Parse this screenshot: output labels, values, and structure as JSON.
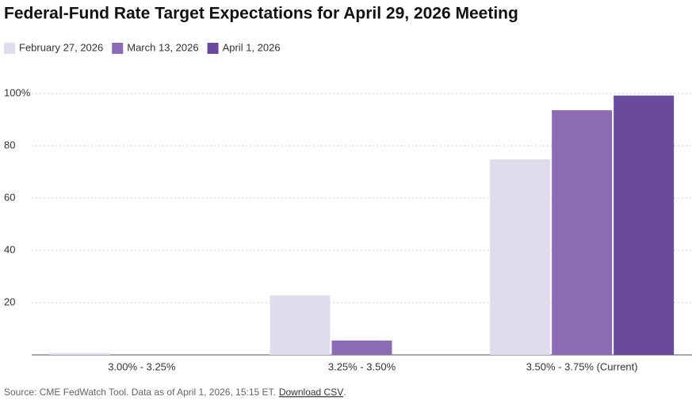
{
  "chart_data": {
    "type": "bar",
    "title": "Federal-Fund Rate Target Expectations for April 29, 2026 Meeting",
    "categories": [
      "3.00% - 3.25%",
      "3.25% - 3.50%",
      "3.50% - 3.75% (Current)"
    ],
    "series": [
      {
        "name": "February 27, 2026",
        "color": "#e0dcec",
        "values": [
          0.7,
          22.7,
          74.8
        ]
      },
      {
        "name": "March 13, 2026",
        "color": "#8c6bb5",
        "values": [
          0,
          5.5,
          93.6
        ]
      },
      {
        "name": "April 1, 2026",
        "color": "#6a4a9c",
        "values": [
          0,
          0,
          99.2
        ]
      }
    ],
    "ylim": [
      0,
      100
    ],
    "yticks": [
      20,
      40,
      60,
      80,
      {
        "value": 100,
        "label": "100%"
      }
    ],
    "grid": true,
    "source": "Source: CME FedWatch Tool. Data as of April 1, 2026, 15:15 ET.",
    "link": "Download CSV",
    "link_suffix": "."
  }
}
